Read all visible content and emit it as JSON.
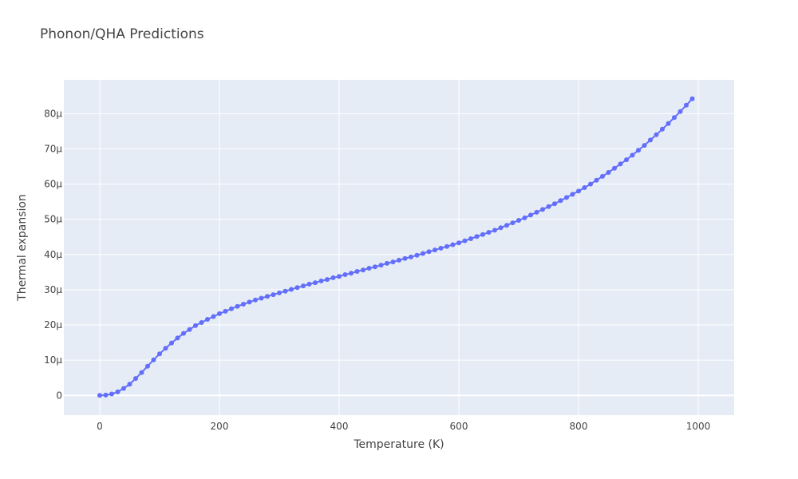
{
  "chart_data": {
    "type": "line",
    "title": "Phonon/QHA Predictions",
    "xlabel": "Temperature (K)",
    "ylabel": "Thermal expansion",
    "xlim": [
      -60,
      1060
    ],
    "ylim": [
      -5.6,
      89.6
    ],
    "x_ticks": [
      0,
      200,
      400,
      600,
      800,
      1000
    ],
    "x_tick_labels": [
      "0",
      "200",
      "400",
      "600",
      "800",
      "1000"
    ],
    "y_ticks": [
      0,
      10,
      20,
      30,
      40,
      50,
      60,
      70,
      80
    ],
    "y_tick_labels": [
      "0",
      "10μ",
      "20μ",
      "30μ",
      "40μ",
      "50μ",
      "60μ",
      "70μ",
      "80μ"
    ],
    "grid": true,
    "series_color": "#636efa",
    "plot_bg": "#e5ecf6",
    "series": [
      {
        "x": [
          0,
          10,
          20,
          30,
          40,
          50,
          60,
          70,
          80,
          90,
          100,
          110,
          120,
          130,
          140,
          150,
          160,
          170,
          180,
          190,
          200,
          210,
          220,
          230,
          240,
          250,
          260,
          270,
          280,
          290,
          300,
          310,
          320,
          330,
          340,
          350,
          360,
          370,
          380,
          390,
          400,
          410,
          420,
          430,
          440,
          450,
          460,
          470,
          480,
          490,
          500,
          510,
          520,
          530,
          540,
          550,
          560,
          570,
          580,
          590,
          600,
          610,
          620,
          630,
          640,
          650,
          660,
          670,
          680,
          690,
          700,
          710,
          720,
          730,
          740,
          750,
          760,
          770,
          780,
          790,
          800,
          810,
          820,
          830,
          840,
          850,
          860,
          870,
          880,
          890,
          900,
          910,
          920,
          930,
          940,
          950,
          960,
          970,
          980,
          990
        ],
        "y": [
          0.0,
          0.1,
          0.4,
          1.0,
          2.0,
          3.2,
          4.8,
          6.5,
          8.3,
          10.1,
          11.8,
          13.4,
          14.9,
          16.3,
          17.6,
          18.7,
          19.8,
          20.7,
          21.6,
          22.4,
          23.2,
          23.9,
          24.6,
          25.3,
          25.9,
          26.5,
          27.1,
          27.6,
          28.1,
          28.6,
          29.1,
          29.6,
          30.1,
          30.6,
          31.1,
          31.6,
          32.0,
          32.5,
          32.9,
          33.4,
          33.8,
          34.3,
          34.7,
          35.2,
          35.6,
          36.1,
          36.5,
          37.0,
          37.5,
          37.9,
          38.4,
          38.9,
          39.3,
          39.8,
          40.3,
          40.8,
          41.3,
          41.8,
          42.3,
          42.8,
          43.3,
          43.9,
          44.5,
          45.1,
          45.7,
          46.3,
          46.9,
          47.6,
          48.3,
          49.0,
          49.7,
          50.4,
          51.2,
          52.0,
          52.8,
          53.6,
          54.4,
          55.3,
          56.2,
          57.1,
          58.0,
          59.0,
          60.0,
          61.1,
          62.2,
          63.3,
          64.5,
          65.7,
          66.9,
          68.2,
          69.6,
          71.0,
          72.5,
          74.0,
          75.6,
          77.2,
          78.9,
          80.6,
          82.4,
          84.2
        ]
      }
    ]
  }
}
